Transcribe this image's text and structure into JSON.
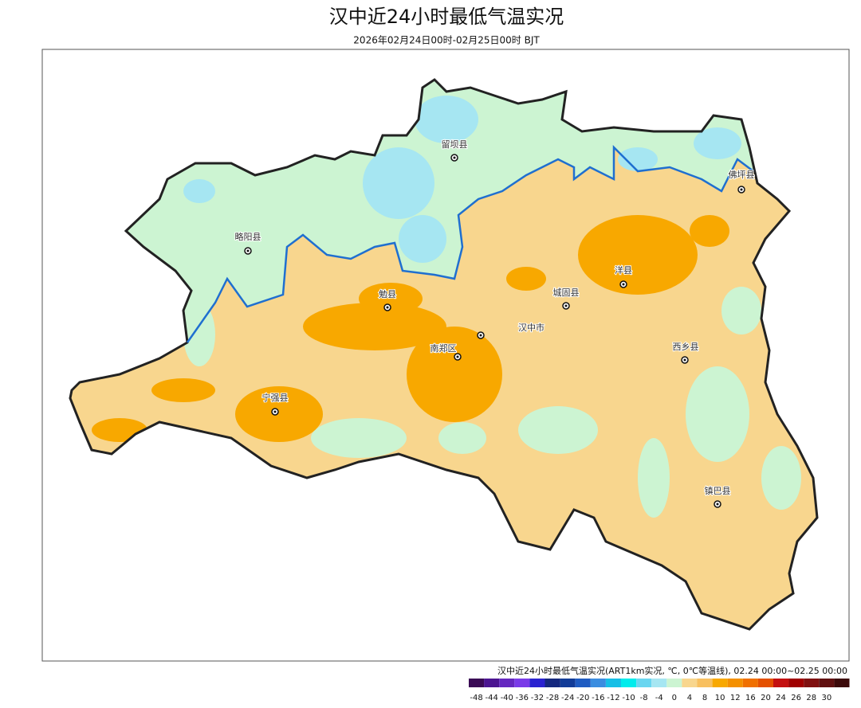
{
  "header": {
    "title": "汉中近24小时最低气温实况",
    "subtitle": "2026年02月24日00时-02月25日00时 BJT"
  },
  "cities": [
    "留坝县",
    "佛坪县",
    "洋县",
    "城固县",
    "汉中市",
    "勉县",
    "南郑区",
    "西乡县",
    "宁强县",
    "略阳县",
    "镇巴县"
  ],
  "legend": {
    "caption": "汉中近24小时最低气温实况(ART1km实况, ℃, 0℃等温线), 02.24 00:00~02.25 00:00",
    "colors": [
      "#3a0a55",
      "#4c1591",
      "#6528c0",
      "#7a3be8",
      "#2a22d0",
      "#15287e",
      "#123c98",
      "#1f5cc2",
      "#3b8de0",
      "#17bfe6",
      "#00ecec",
      "#6ad6f0",
      "#a6e6f2",
      "#ccf4d2",
      "#f8d68e",
      "#f8c060",
      "#f8a800",
      "#f49000",
      "#f07000",
      "#e45000",
      "#c41010",
      "#a00000",
      "#801010",
      "#601010",
      "#3c0a0a"
    ],
    "ticks": [
      -48,
      -44,
      -40,
      -36,
      -32,
      -28,
      -24,
      -20,
      -16,
      -12,
      -10,
      -8,
      -4,
      0,
      4,
      8,
      10,
      12,
      16,
      20,
      24,
      26,
      28,
      30
    ]
  }
}
